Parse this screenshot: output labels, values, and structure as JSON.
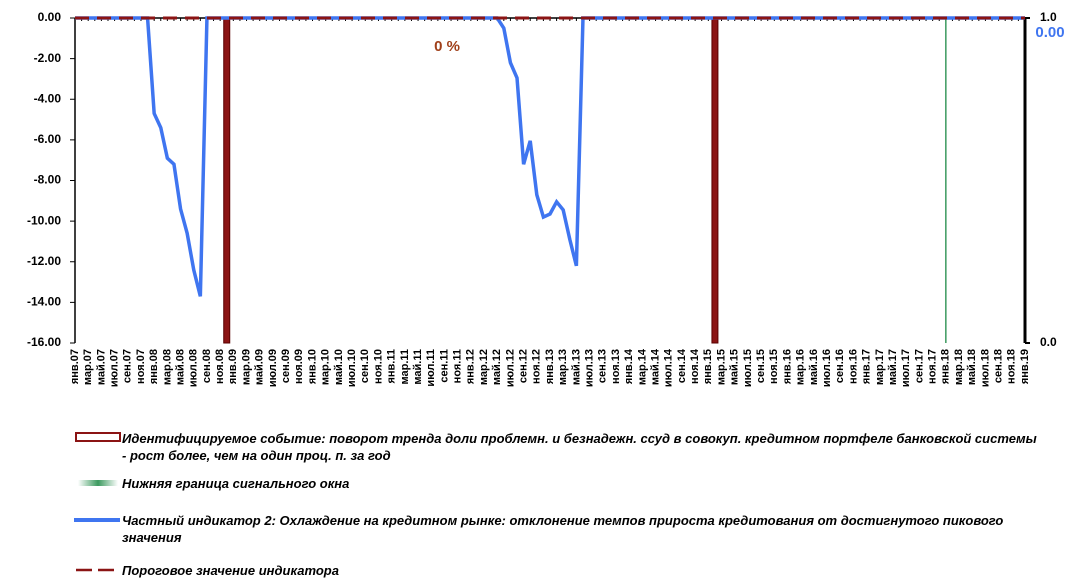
{
  "chart_data": {
    "type": "combo",
    "categories": [
      "янв.07",
      null,
      "мар.07",
      null,
      "май.07",
      null,
      "июл.07",
      null,
      "сен.07",
      null,
      "ноя.07",
      null,
      "янв.08",
      null,
      "мар.08",
      null,
      "май.08",
      null,
      "июл.08",
      null,
      "сен.08",
      null,
      "ноя.08",
      null,
      "янв.09",
      null,
      "мар.09",
      null,
      "май.09",
      null,
      "июл.09",
      null,
      "сен.09",
      null,
      "ноя.09",
      null,
      "янв.10",
      null,
      "мар.10",
      null,
      "май.10",
      null,
      "июл.10",
      null,
      "сен.10",
      null,
      "ноя.10",
      null,
      "янв.11",
      null,
      "мар.11",
      null,
      "май.11",
      null,
      "июл.11",
      null,
      "сен.11",
      null,
      "ноя.11",
      null,
      "янв.12",
      null,
      "мар.12",
      null,
      "май.12",
      null,
      "июл.12",
      null,
      "сен.12",
      null,
      "ноя.12",
      null,
      "янв.13",
      null,
      "мар.13",
      null,
      "май.13",
      null,
      "июл.13",
      null,
      "сен.13",
      null,
      "ноя.13",
      null,
      "янв.14",
      null,
      "мар.14",
      null,
      "май.14",
      null,
      "июл.14",
      null,
      "сен.14",
      null,
      "ноя.14",
      null,
      "янв.15",
      null,
      "мар.15",
      null,
      "май.15",
      null,
      "июл.15",
      null,
      "сен.15",
      null,
      "ноя.15",
      null,
      "янв.16",
      null,
      "мар.16",
      null,
      "май.16",
      null,
      "июл.16",
      null,
      "сен.16",
      null,
      "ноя.16",
      null,
      "янв.17",
      null,
      "мар.17",
      null,
      "май.17",
      null,
      "июл.17",
      null,
      "сен.17",
      null,
      "ноя.17",
      null,
      "янв.18",
      null,
      "мар.18",
      null,
      "май.18",
      null,
      "июл.18",
      null,
      "сен.18",
      null,
      "ноя.18",
      null,
      "янв.19"
    ],
    "series": [
      {
        "name": "Идентифицируемое событие: поворот тренда доли проблемн. и безнадежн. ссуд  в совокуп. кредитном портфеле банковской системы  - рост более, чем  на один проц. п. за год",
        "type": "bar",
        "axis": "y2",
        "color": "#8b1414",
        "values": [
          0,
          0,
          0,
          0,
          0,
          0,
          0,
          0,
          0,
          0,
          0,
          0,
          0,
          0,
          0,
          0,
          0,
          0,
          0,
          0,
          0,
          0,
          0,
          1,
          0,
          0,
          0,
          0,
          0,
          0,
          0,
          0,
          0,
          0,
          0,
          0,
          0,
          0,
          0,
          0,
          0,
          0,
          0,
          0,
          0,
          0,
          0,
          0,
          0,
          0,
          0,
          0,
          0,
          0,
          0,
          0,
          0,
          0,
          0,
          0,
          0,
          0,
          0,
          0,
          0,
          0,
          0,
          0,
          0,
          0,
          0,
          0,
          0,
          0,
          0,
          0,
          0,
          0,
          0,
          0,
          0,
          0,
          0,
          0,
          0,
          0,
          0,
          0,
          0,
          0,
          0,
          0,
          0,
          0,
          0,
          0,
          0,
          1,
          0,
          0,
          0,
          0,
          0,
          0,
          0,
          0,
          0,
          0,
          0,
          0,
          0,
          0,
          0,
          0,
          0,
          0,
          0,
          0,
          0,
          0,
          0,
          0,
          0,
          0,
          0,
          0,
          0,
          0,
          0,
          0,
          0,
          0,
          0,
          0,
          0,
          0,
          0,
          0,
          0,
          0,
          0,
          0,
          0,
          0,
          0
        ]
      },
      {
        "name": "Нижняя граница сигнального окна",
        "type": "bar",
        "axis": "y2",
        "color": "#3c9a5f",
        "values": [
          0,
          0,
          0,
          0,
          0,
          0,
          0,
          0,
          0,
          0,
          0,
          0,
          0,
          0,
          0,
          0,
          0,
          0,
          0,
          0,
          0,
          0,
          0,
          0,
          0,
          0,
          0,
          0,
          0,
          0,
          0,
          0,
          0,
          0,
          0,
          0,
          0,
          0,
          0,
          0,
          0,
          0,
          0,
          0,
          0,
          0,
          0,
          0,
          0,
          0,
          0,
          0,
          0,
          0,
          0,
          0,
          0,
          0,
          0,
          0,
          0,
          0,
          0,
          0,
          0,
          0,
          0,
          0,
          0,
          0,
          0,
          0,
          0,
          0,
          0,
          0,
          0,
          0,
          0,
          0,
          0,
          0,
          0,
          0,
          0,
          0,
          0,
          0,
          0,
          0,
          0,
          0,
          0,
          0,
          0,
          0,
          0,
          0,
          0,
          0,
          0,
          0,
          0,
          0,
          0,
          0,
          0,
          0,
          0,
          0,
          0,
          0,
          0,
          0,
          0,
          0,
          0,
          0,
          0,
          0,
          0,
          0,
          0,
          0,
          0,
          0,
          0,
          0,
          0,
          0,
          0,
          0,
          1,
          0,
          0,
          0,
          0,
          0,
          0,
          0,
          0,
          0,
          0,
          0,
          0
        ]
      },
      {
        "name": "Частный индикатор 2: Охлаждение на кредитном  рынке: отклонение темпов прироста  кредитования от достигнутого  пикового значения",
        "type": "line",
        "color": "#3f75f0",
        "values": [
          0,
          0,
          0,
          0,
          0,
          0,
          0,
          0,
          0,
          0,
          0,
          0,
          -4.7,
          -5.4,
          -6.9,
          -7.2,
          -9.4,
          -10.6,
          -12.4,
          -13.7,
          0,
          0,
          0,
          0,
          0,
          0,
          0,
          0,
          0,
          0,
          0,
          0,
          0,
          0,
          0,
          0,
          0,
          0,
          0,
          0,
          0,
          0,
          0,
          0,
          0,
          0,
          0,
          0,
          0,
          0,
          0,
          0,
          0,
          0,
          0,
          0,
          0,
          0,
          0,
          0,
          0,
          0,
          0,
          0,
          0,
          -0.5,
          -2.2,
          -2.95,
          -7.2,
          -6.05,
          -8.7,
          -9.8,
          -9.65,
          -9.05,
          -9.45,
          -10.9,
          -12.2,
          0,
          0,
          0,
          0,
          0,
          0,
          0,
          0,
          0,
          0,
          0,
          0,
          0,
          0,
          0,
          0,
          0,
          0,
          0,
          0,
          0,
          0,
          0,
          0,
          0,
          0,
          0,
          0,
          0,
          0,
          0,
          0,
          0,
          0,
          0,
          0,
          0,
          0,
          0,
          0,
          0,
          0,
          0,
          0,
          0,
          0,
          0,
          0,
          0,
          0,
          0,
          0,
          0,
          0,
          0,
          0,
          0,
          0,
          0,
          0,
          0,
          0,
          0,
          0,
          0,
          0,
          0,
          0
        ]
      },
      {
        "name": "Пороговое  значение индикатора",
        "type": "line",
        "dashed": true,
        "color": "#8b1414",
        "values": [
          0,
          0,
          0,
          0,
          0,
          0,
          0,
          0,
          0,
          0,
          0,
          0,
          0,
          0,
          0,
          0,
          0,
          0,
          0,
          0,
          0,
          0,
          0,
          0,
          0,
          0,
          0,
          0,
          0,
          0,
          0,
          0,
          0,
          0,
          0,
          0,
          0,
          0,
          0,
          0,
          0,
          0,
          0,
          0,
          0,
          0,
          0,
          0,
          0,
          0,
          0,
          0,
          0,
          0,
          0,
          0,
          0,
          0,
          0,
          0,
          0,
          0,
          0,
          0,
          0,
          0,
          0,
          0,
          0,
          0,
          0,
          0,
          0,
          0,
          0,
          0,
          0,
          0,
          0,
          0,
          0,
          0,
          0,
          0,
          0,
          0,
          0,
          0,
          0,
          0,
          0,
          0,
          0,
          0,
          0,
          0,
          0,
          0,
          0,
          0,
          0,
          0,
          0,
          0,
          0,
          0,
          0,
          0,
          0,
          0,
          0,
          0,
          0,
          0,
          0,
          0,
          0,
          0,
          0,
          0,
          0,
          0,
          0,
          0,
          0,
          0,
          0,
          0,
          0,
          0,
          0,
          0,
          0,
          0,
          0,
          0,
          0,
          0,
          0,
          0,
          0,
          0,
          0,
          0,
          0
        ]
      }
    ],
    "ylim": [
      -16,
      0
    ],
    "yticks": [
      {
        "value": 0,
        "label": "0.00"
      },
      {
        "value": -2,
        "label": "-2.00"
      },
      {
        "value": -4,
        "label": "-4.00"
      },
      {
        "value": -6,
        "label": "-6.00"
      },
      {
        "value": -8,
        "label": "-8.00"
      },
      {
        "value": -10,
        "label": "-10.00"
      },
      {
        "value": -12,
        "label": "-12.00"
      },
      {
        "value": -14,
        "label": "-14.00"
      },
      {
        "value": -16,
        "label": "-16.00"
      }
    ],
    "y2lim": [
      0,
      1
    ],
    "y2ticks": [
      {
        "value": 0,
        "label": "0.0"
      },
      {
        "value": 1,
        "label": "1.0"
      }
    ],
    "annotations": [
      "0 %",
      "0.00"
    ]
  }
}
